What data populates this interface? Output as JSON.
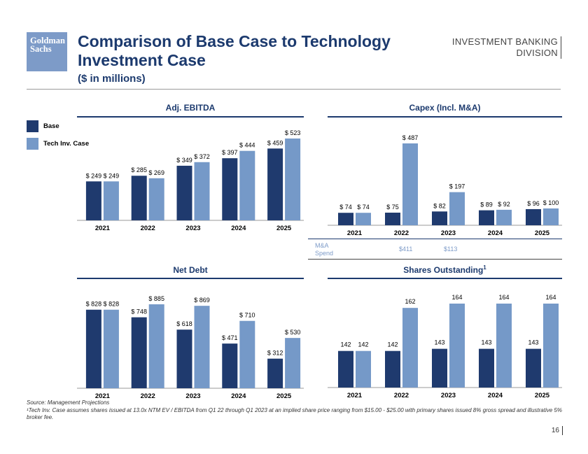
{
  "logo": {
    "line1": "Goldman",
    "line2": "Sachs"
  },
  "header": {
    "title": "Comparison of Base Case to Technology Investment Case",
    "subtitle": "($ in millions)",
    "division_line1": "INVESTMENT BANKING",
    "division_line2": "DIVISION"
  },
  "colors": {
    "base": "#1f3a6e",
    "tech": "#7599c8",
    "accent": "#1c3a6e"
  },
  "legend": {
    "base": "Base",
    "tech": "Tech Inv. Case"
  },
  "chart_data": [
    {
      "id": "ebitda",
      "type": "bar",
      "title": "Adj. EBITDA",
      "categories": [
        "2021",
        "2022",
        "2023",
        "2024",
        "2025"
      ],
      "series": [
        {
          "name": "Base",
          "values": [
            249,
            285,
            349,
            397,
            459
          ],
          "labels": [
            "$ 249",
            "$ 285",
            "$ 349",
            "$ 397",
            "$ 459"
          ]
        },
        {
          "name": "Tech Inv. Case",
          "values": [
            249,
            269,
            372,
            444,
            523
          ],
          "labels": [
            "$ 249",
            "$ 269",
            "$ 372",
            "$ 444",
            "$ 523"
          ]
        }
      ],
      "ylim": [
        0,
        523
      ]
    },
    {
      "id": "capex",
      "type": "bar",
      "title": "Capex (Incl. M&A)",
      "categories": [
        "2021",
        "2022",
        "2023",
        "2024",
        "2025"
      ],
      "series": [
        {
          "name": "Base",
          "values": [
            74,
            75,
            82,
            89,
            96
          ],
          "labels": [
            "$ 74",
            "$ 75",
            "$ 82",
            "$ 89",
            "$ 96"
          ]
        },
        {
          "name": "Tech Inv. Case",
          "values": [
            74,
            487,
            197,
            92,
            100
          ],
          "labels": [
            "$ 74",
            "$ 487",
            "$ 197",
            "$ 92",
            "$ 100"
          ]
        }
      ],
      "ylim": [
        0,
        487
      ]
    },
    {
      "id": "netdebt",
      "type": "bar",
      "title": "Net Debt",
      "categories": [
        "2021",
        "2022",
        "2023",
        "2024",
        "2025"
      ],
      "series": [
        {
          "name": "Base",
          "values": [
            828,
            748,
            618,
            471,
            312
          ],
          "labels": [
            "$ 828",
            "$ 748",
            "$ 618",
            "$ 471",
            "$ 312"
          ]
        },
        {
          "name": "Tech Inv. Case",
          "values": [
            828,
            885,
            869,
            710,
            530
          ],
          "labels": [
            "$ 828",
            "$ 885",
            "$ 869",
            "$ 710",
            "$ 530"
          ]
        }
      ],
      "ylim": [
        0,
        885
      ]
    },
    {
      "id": "shares",
      "type": "bar",
      "title": "Shares Outstanding",
      "title_sup": "1",
      "categories": [
        "2021",
        "2022",
        "2023",
        "2024",
        "2025"
      ],
      "series": [
        {
          "name": "Base",
          "values": [
            142,
            142,
            143,
            143,
            143
          ],
          "labels": [
            "142",
            "142",
            "143",
            "143",
            "143"
          ]
        },
        {
          "name": "Tech Inv. Case",
          "values": [
            142,
            162,
            164,
            164,
            164
          ],
          "labels": [
            "142",
            "162",
            "164",
            "164",
            "164"
          ]
        }
      ],
      "ylim": [
        0,
        164
      ],
      "display": "custom"
    }
  ],
  "ma_spend": {
    "label_line1": "M&A",
    "label_line2": "Spend",
    "y2022": "$411",
    "y2023": "$113"
  },
  "footnote": {
    "source": "Source: Management Projections",
    "note": "¹Tech Inv. Case assumes shares issued at 13.0x NTM EV / EBITDA from Q1 22 through Q1 2023 at an implied share price ranging from $15.00 - $25.00 with primary shares issued 8% gross spread and illustrative 5% broker fee."
  },
  "page_number": "16"
}
